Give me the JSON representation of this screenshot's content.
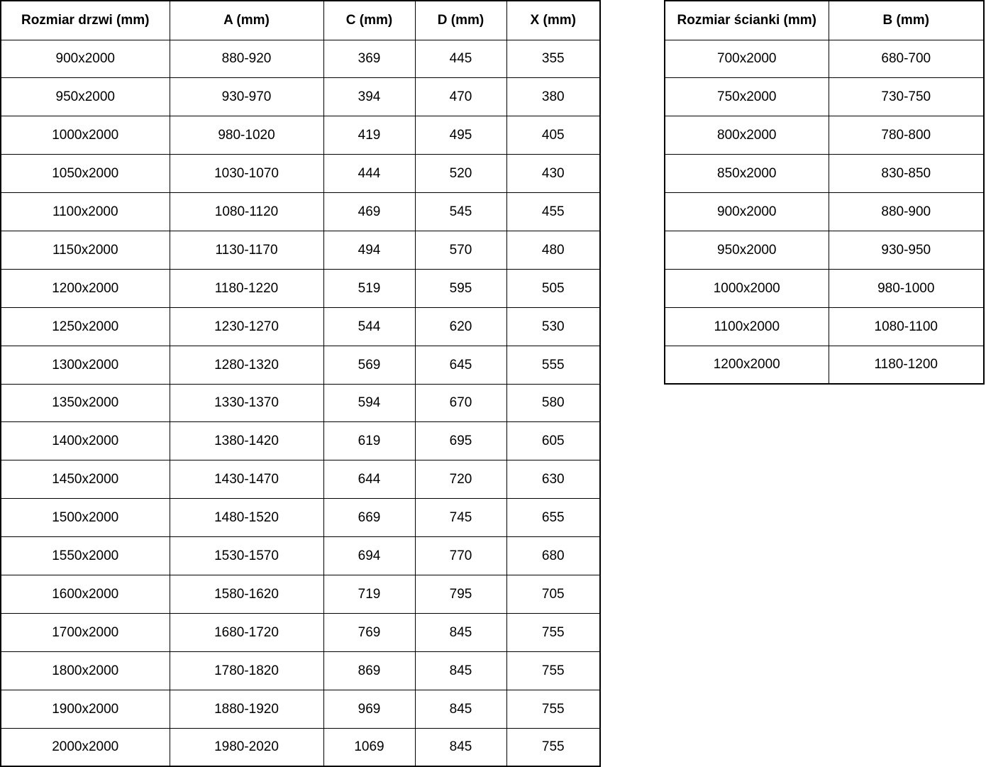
{
  "colors": {
    "background": "#ffffff",
    "border": "#000000",
    "text": "#000000"
  },
  "tables": {
    "doors": {
      "name": "door-sizes-table",
      "headers": [
        "Rozmiar drzwi (mm)",
        "A (mm)",
        "C (mm)",
        "D (mm)",
        "X (mm)"
      ],
      "rows": [
        [
          "900x2000",
          "880-920",
          "369",
          "445",
          "355"
        ],
        [
          "950x2000",
          "930-970",
          "394",
          "470",
          "380"
        ],
        [
          "1000x2000",
          "980-1020",
          "419",
          "495",
          "405"
        ],
        [
          "1050x2000",
          "1030-1070",
          "444",
          "520",
          "430"
        ],
        [
          "1100x2000",
          "1080-1120",
          "469",
          "545",
          "455"
        ],
        [
          "1150x2000",
          "1130-1170",
          "494",
          "570",
          "480"
        ],
        [
          "1200x2000",
          "1180-1220",
          "519",
          "595",
          "505"
        ],
        [
          "1250x2000",
          "1230-1270",
          "544",
          "620",
          "530"
        ],
        [
          "1300x2000",
          "1280-1320",
          "569",
          "645",
          "555"
        ],
        [
          "1350x2000",
          "1330-1370",
          "594",
          "670",
          "580"
        ],
        [
          "1400x2000",
          "1380-1420",
          "619",
          "695",
          "605"
        ],
        [
          "1450x2000",
          "1430-1470",
          "644",
          "720",
          "630"
        ],
        [
          "1500x2000",
          "1480-1520",
          "669",
          "745",
          "655"
        ],
        [
          "1550x2000",
          "1530-1570",
          "694",
          "770",
          "680"
        ],
        [
          "1600x2000",
          "1580-1620",
          "719",
          "795",
          "705"
        ],
        [
          "1700x2000",
          "1680-1720",
          "769",
          "845",
          "755"
        ],
        [
          "1800x2000",
          "1780-1820",
          "869",
          "845",
          "755"
        ],
        [
          "1900x2000",
          "1880-1920",
          "969",
          "845",
          "755"
        ],
        [
          "2000x2000",
          "1980-2020",
          "1069",
          "845",
          "755"
        ]
      ]
    },
    "walls": {
      "name": "wall-sizes-table",
      "headers": [
        "Rozmiar ścianki (mm)",
        "B (mm)"
      ],
      "rows": [
        [
          "700x2000",
          "680-700"
        ],
        [
          "750x2000",
          "730-750"
        ],
        [
          "800x2000",
          "780-800"
        ],
        [
          "850x2000",
          "830-850"
        ],
        [
          "900x2000",
          "880-900"
        ],
        [
          "950x2000",
          "930-950"
        ],
        [
          "1000x2000",
          "980-1000"
        ],
        [
          "1100x2000",
          "1080-1100"
        ],
        [
          "1200x2000",
          "1180-1200"
        ]
      ]
    }
  }
}
